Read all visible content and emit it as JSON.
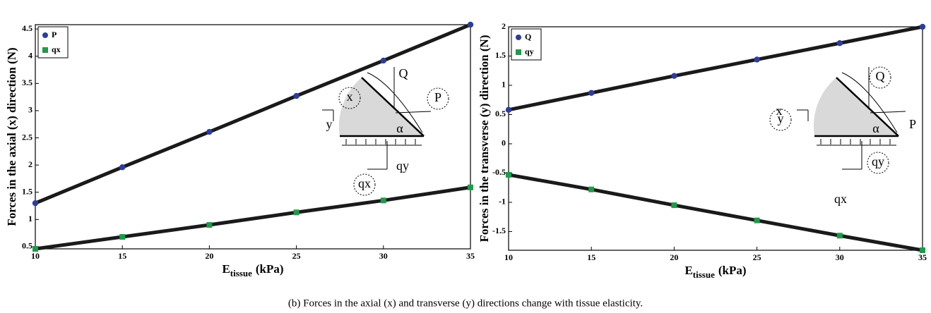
{
  "chart_data": [
    {
      "type": "line",
      "y_label": "Forces in the axial (x) direction (N)",
      "x_label": "E",
      "x_label_sub": "tissue",
      "x_label_unit": "(kPa)",
      "x": [
        10,
        15,
        20,
        25,
        30,
        35
      ],
      "series": [
        {
          "name": "P",
          "color": "#2c3d9c",
          "marker": "circle",
          "values": [
            1.3,
            1.96,
            2.61,
            3.27,
            3.92,
            4.58
          ]
        },
        {
          "name": "qx",
          "color": "#1f9a4a",
          "marker": "square",
          "values": [
            0.46,
            0.68,
            0.9,
            1.13,
            1.35,
            1.59
          ]
        }
      ],
      "xlim": [
        10,
        35
      ],
      "xticks": [
        10,
        15,
        20,
        25,
        30,
        35
      ],
      "ylim": [
        0.46,
        4.58
      ],
      "yticks": [
        0.5,
        1,
        1.5,
        2,
        2.5,
        3,
        3.5,
        4,
        4.5
      ],
      "legend": "upper left",
      "inset_labels": [
        "Q",
        "P",
        "x",
        "y",
        "α",
        "qy",
        "qx"
      ]
    },
    {
      "type": "line",
      "y_label": "Forces in the transverse (y) direction (N)",
      "x_label": "E",
      "x_label_sub": "tissue",
      "x_label_unit": "(kPa)",
      "x": [
        10,
        15,
        20,
        25,
        30,
        35
      ],
      "series": [
        {
          "name": "Q",
          "color": "#2c3d9c",
          "marker": "circle",
          "values": [
            0.58,
            0.87,
            1.16,
            1.44,
            1.72,
            2.0
          ]
        },
        {
          "name": "qy",
          "color": "#1f9a4a",
          "marker": "square",
          "values": [
            -0.53,
            -0.78,
            -1.05,
            -1.31,
            -1.57,
            -1.82
          ]
        }
      ],
      "xlim": [
        10,
        35
      ],
      "xticks": [
        10,
        15,
        20,
        25,
        30,
        35
      ],
      "ylim": [
        -1.82,
        2.0
      ],
      "yticks": [
        -1.5,
        -1,
        -0.5,
        0,
        0.5,
        1,
        1.5,
        2
      ],
      "legend": "upper left",
      "inset_labels": [
        "Q",
        "P",
        "x",
        "y",
        "α",
        "qy",
        "qx"
      ]
    }
  ],
  "caption": "(b) Forces in the axial (x) and transverse (y) directions change with tissue elasticity."
}
